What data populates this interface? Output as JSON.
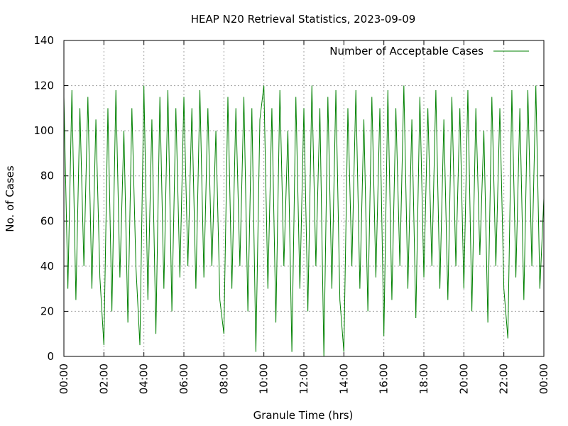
{
  "chart_data": {
    "type": "line",
    "title": "HEAP N20 Retrieval Statistics, 2023-09-09",
    "x_label": "Granule Time (hrs)",
    "y_label": "No. of Cases",
    "x": [
      0,
      0.2,
      0.4,
      0.6,
      0.8,
      1,
      1.2,
      1.4,
      1.6,
      1.8,
      2,
      2.2,
      2.4,
      2.6,
      2.8,
      3,
      3.2,
      3.4,
      3.6,
      3.8,
      4,
      4.2,
      4.4,
      4.6,
      4.8,
      5,
      5.2,
      5.4,
      5.6,
      5.8,
      6,
      6.2,
      6.4,
      6.6,
      6.8,
      7,
      7.2,
      7.4,
      7.6,
      7.8,
      8,
      8.2,
      8.4,
      8.6,
      8.8,
      9,
      9.2,
      9.4,
      9.6,
      9.8,
      10,
      10.2,
      10.4,
      10.6,
      10.8,
      11,
      11.2,
      11.4,
      11.6,
      11.8,
      12,
      12.2,
      12.4,
      12.6,
      12.8,
      13,
      13.2,
      13.4,
      13.6,
      13.8,
      14,
      14.2,
      14.4,
      14.6,
      14.8,
      15,
      15.2,
      15.4,
      15.6,
      15.8,
      16,
      16.2,
      16.4,
      16.6,
      16.8,
      17,
      17.2,
      17.4,
      17.6,
      17.8,
      18,
      18.2,
      18.4,
      18.6,
      18.8,
      19,
      19.2,
      19.4,
      19.6,
      19.8,
      20,
      20.2,
      20.4,
      20.6,
      20.8,
      21,
      21.2,
      21.4,
      21.6,
      21.8,
      22,
      22.2,
      22.4,
      22.6,
      22.8,
      23,
      23.2,
      23.4,
      23.6,
      23.8,
      24
    ],
    "series": [
      {
        "name": "Number of Acceptable Cases",
        "color": "#008000",
        "values": [
          115,
          30,
          118,
          25,
          110,
          40,
          115,
          30,
          105,
          35,
          5,
          110,
          20,
          118,
          35,
          100,
          15,
          110,
          40,
          5,
          120,
          25,
          105,
          10,
          115,
          30,
          118,
          20,
          110,
          35,
          115,
          40,
          110,
          30,
          118,
          35,
          110,
          40,
          100,
          25,
          10,
          115,
          30,
          110,
          40,
          115,
          20,
          110,
          2,
          105,
          120,
          30,
          110,
          15,
          118,
          40,
          100,
          2,
          115,
          30,
          110,
          20,
          120,
          40,
          110,
          0,
          115,
          30,
          118,
          25,
          2,
          110,
          40,
          118,
          30,
          105,
          20,
          115,
          35,
          110,
          9,
          118,
          25,
          110,
          40,
          120,
          30,
          105,
          17,
          115,
          35,
          110,
          40,
          118,
          30,
          105,
          25,
          115,
          40,
          110,
          30,
          118,
          20,
          110,
          45,
          100,
          15,
          115,
          40,
          110,
          30,
          8,
          118,
          35,
          110,
          25,
          118,
          40,
          120,
          30,
          70
        ]
      }
    ],
    "xlim": [
      0,
      24
    ],
    "xticks": [
      {
        "value": 0,
        "label": "00:00"
      },
      {
        "value": 2,
        "label": "02:00"
      },
      {
        "value": 4,
        "label": "04:00"
      },
      {
        "value": 6,
        "label": "06:00"
      },
      {
        "value": 8,
        "label": "08:00"
      },
      {
        "value": 10,
        "label": "10:00"
      },
      {
        "value": 12,
        "label": "12:00"
      },
      {
        "value": 14,
        "label": "14:00"
      },
      {
        "value": 16,
        "label": "16:00"
      },
      {
        "value": 18,
        "label": "18:00"
      },
      {
        "value": 20,
        "label": "20:00"
      },
      {
        "value": 22,
        "label": "22:00"
      },
      {
        "value": 24,
        "label": "00:00"
      }
    ],
    "ylim": [
      0,
      140
    ],
    "yticks": [
      0,
      20,
      40,
      60,
      80,
      100,
      120,
      140
    ],
    "grid": true,
    "legend": "upper right"
  }
}
